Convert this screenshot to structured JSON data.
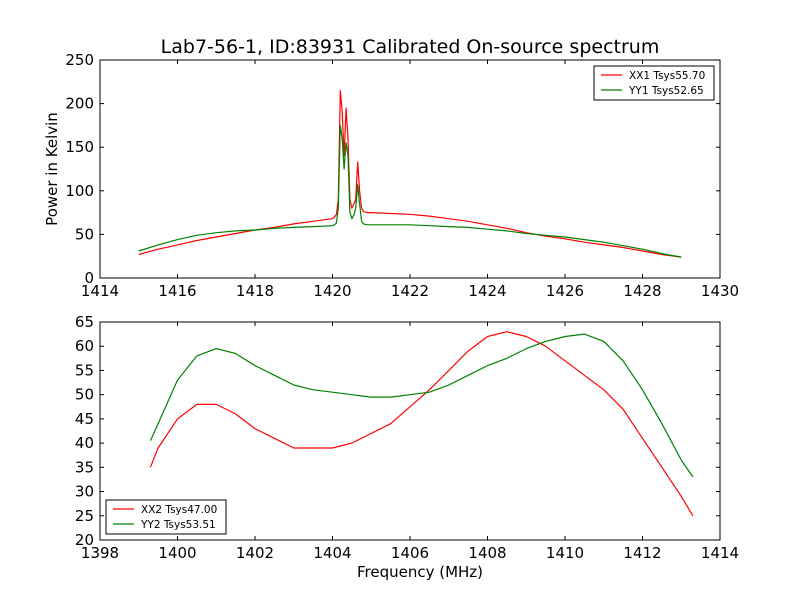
{
  "title": "Lab7-56-1, ID:83931 Calibrated On-source spectrum",
  "colors": {
    "red": "#ff0000",
    "green": "#008000",
    "axes": "#000000",
    "background": "#ffffff"
  },
  "chart_data": [
    {
      "type": "line",
      "title": "Lab7-56-1, ID:83931 Calibrated On-source spectrum",
      "xlabel": "",
      "ylabel": "Power in Kelvin",
      "xlim": [
        1414,
        1430
      ],
      "ylim": [
        0,
        250
      ],
      "xticks": [
        1414,
        1416,
        1418,
        1420,
        1422,
        1424,
        1426,
        1428,
        1430
      ],
      "yticks": [
        0,
        50,
        100,
        150,
        200,
        250
      ],
      "grid": false,
      "legend": "top-right",
      "series": [
        {
          "name": "XX1 Tsys55.70",
          "color": "#ff0000",
          "x": [
            1415,
            1415.5,
            1416,
            1416.5,
            1417,
            1417.5,
            1418,
            1418.5,
            1419,
            1419.5,
            1420,
            1420.05,
            1420.1,
            1420.15,
            1420.2,
            1420.25,
            1420.3,
            1420.35,
            1420.4,
            1420.45,
            1420.5,
            1420.55,
            1420.6,
            1420.65,
            1420.7,
            1420.75,
            1420.8,
            1420.9,
            1421,
            1421.5,
            1422,
            1422.5,
            1423,
            1423.5,
            1424,
            1424.5,
            1425,
            1425.5,
            1426,
            1426.5,
            1427,
            1427.5,
            1428,
            1428.5,
            1429
          ],
          "y": [
            27,
            33,
            38,
            43,
            47,
            51,
            55,
            58,
            62,
            65,
            68,
            70,
            73,
            90,
            215,
            190,
            140,
            195,
            160,
            90,
            80,
            85,
            90,
            133,
            100,
            80,
            76,
            75,
            75,
            74,
            73,
            71,
            68,
            65,
            61,
            57,
            52,
            48,
            45,
            41,
            38,
            35,
            31,
            27,
            24
          ]
        },
        {
          "name": "YY1 Tsys52.65",
          "color": "#008000",
          "x": [
            1415,
            1415.5,
            1416,
            1416.5,
            1417,
            1417.5,
            1418,
            1418.5,
            1419,
            1419.5,
            1420,
            1420.05,
            1420.1,
            1420.15,
            1420.2,
            1420.25,
            1420.3,
            1420.35,
            1420.4,
            1420.45,
            1420.5,
            1420.55,
            1420.6,
            1420.65,
            1420.7,
            1420.75,
            1420.8,
            1420.9,
            1421,
            1421.5,
            1422,
            1422.5,
            1423,
            1423.5,
            1424,
            1424.5,
            1425,
            1425.5,
            1426,
            1426.5,
            1427,
            1427.5,
            1428,
            1428.5,
            1429
          ],
          "y": [
            31,
            38,
            44,
            49,
            52,
            54,
            55,
            57,
            58,
            59,
            60,
            61,
            63,
            80,
            175,
            160,
            125,
            155,
            140,
            75,
            68,
            72,
            80,
            107,
            85,
            65,
            62,
            61,
            61,
            61,
            61,
            60,
            59,
            58,
            56,
            54,
            51,
            49,
            47,
            44,
            41,
            37,
            33,
            28,
            24
          ]
        }
      ]
    },
    {
      "type": "line",
      "title": "",
      "xlabel": "Frequency (MHz)",
      "ylabel": "",
      "xlim": [
        1398,
        1414
      ],
      "ylim": [
        20,
        65
      ],
      "xticks": [
        1398,
        1400,
        1402,
        1404,
        1406,
        1408,
        1410,
        1412,
        1414
      ],
      "yticks": [
        20,
        25,
        30,
        35,
        40,
        45,
        50,
        55,
        60,
        65
      ],
      "grid": false,
      "legend": "bottom-left",
      "series": [
        {
          "name": "XX2 Tsys47.00",
          "color": "#ff0000",
          "x": [
            1399.3,
            1399.5,
            1400,
            1400.5,
            1401,
            1401.5,
            1402,
            1402.5,
            1403,
            1403.5,
            1404,
            1404.5,
            1405,
            1405.5,
            1406,
            1406.5,
            1407,
            1407.5,
            1408,
            1408.5,
            1409,
            1409.5,
            1410,
            1410.5,
            1411,
            1411.5,
            1412,
            1412.5,
            1413,
            1413.3
          ],
          "y": [
            35,
            39,
            45,
            48,
            48,
            46,
            43,
            41,
            39,
            39,
            39,
            40,
            42,
            44,
            47.5,
            51,
            55,
            59,
            62,
            63,
            62,
            60,
            57,
            54,
            51,
            47,
            41,
            35,
            29,
            25
          ]
        },
        {
          "name": "YY2 Tsys53.51",
          "color": "#008000",
          "x": [
            1399.3,
            1399.5,
            1400,
            1400.5,
            1401,
            1401.5,
            1402,
            1402.5,
            1403,
            1403.5,
            1404,
            1404.5,
            1405,
            1405.5,
            1406,
            1406.5,
            1407,
            1407.5,
            1408,
            1408.5,
            1409,
            1409.5,
            1410,
            1410.5,
            1411,
            1411.5,
            1412,
            1412.5,
            1413,
            1413.3
          ],
          "y": [
            40.5,
            44,
            53,
            58,
            59.5,
            58.5,
            56,
            54,
            52,
            51,
            50.5,
            50,
            49.5,
            49.5,
            50,
            50.5,
            52,
            54,
            56,
            57.5,
            59.5,
            61,
            62,
            62.5,
            61,
            57,
            51,
            44,
            36.5,
            33
          ]
        }
      ]
    }
  ]
}
